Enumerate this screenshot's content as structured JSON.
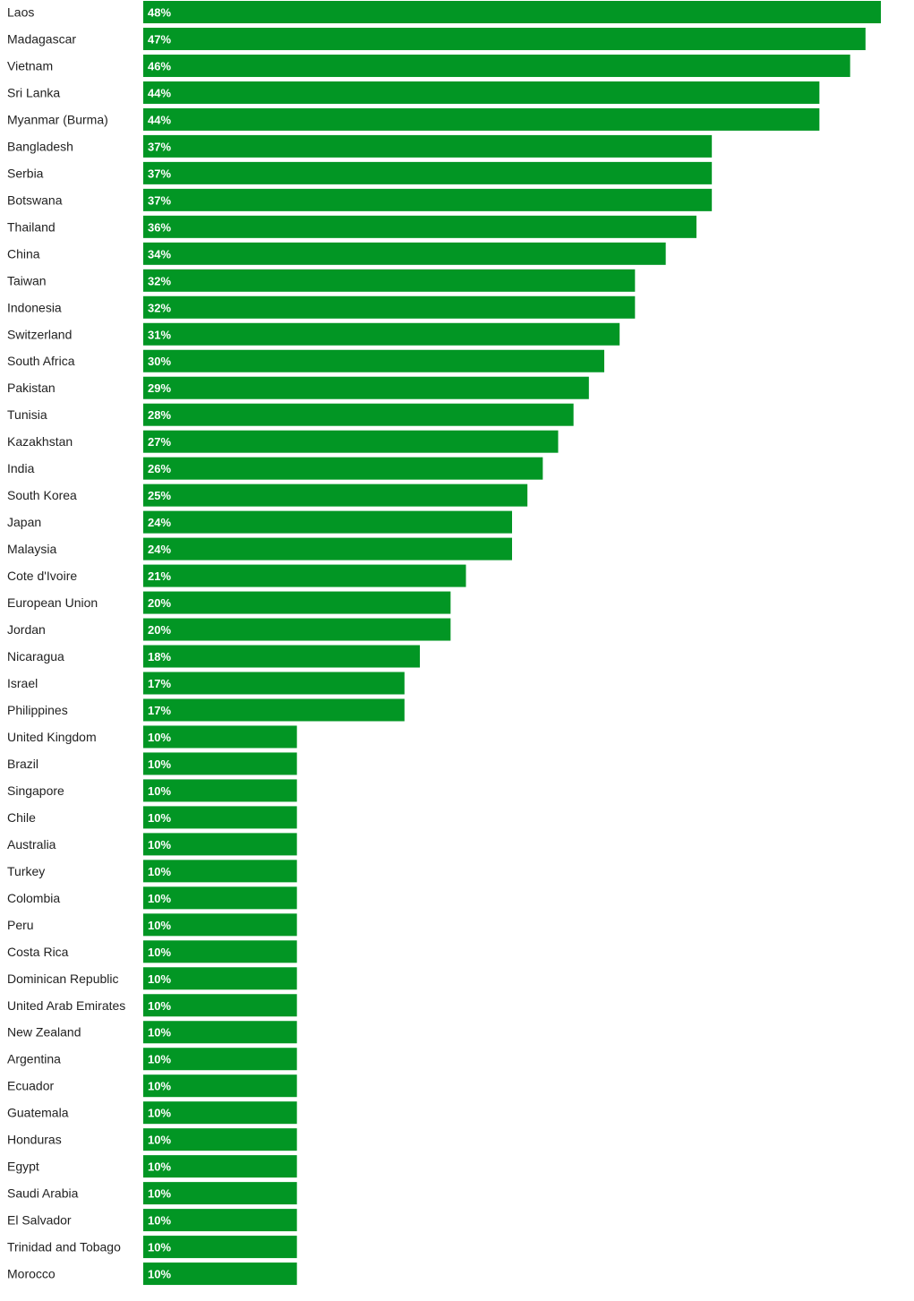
{
  "chart_data": {
    "type": "bar",
    "orientation": "horizontal",
    "title": "",
    "xlabel": "",
    "ylabel": "",
    "xlim": [
      0,
      48
    ],
    "value_suffix": "%",
    "bar_color": "#029624",
    "label_color": "#ffffff",
    "categories": [
      "Laos",
      "Madagascar",
      "Vietnam",
      "Sri Lanka",
      "Myanmar (Burma)",
      "Bangladesh",
      "Serbia",
      "Botswana",
      "Thailand",
      "China",
      "Taiwan",
      "Indonesia",
      "Switzerland",
      "South Africa",
      "Pakistan",
      "Tunisia",
      "Kazakhstan",
      "India",
      "South Korea",
      "Japan",
      "Malaysia",
      "Cote d'Ivoire",
      "European Union",
      "Jordan",
      "Nicaragua",
      "Israel",
      "Philippines",
      "United Kingdom",
      "Brazil",
      "Singapore",
      "Chile",
      "Australia",
      "Turkey",
      "Colombia",
      "Peru",
      "Costa Rica",
      "Dominican Republic",
      "United Arab Emirates",
      "New Zealand",
      "Argentina",
      "Ecuador",
      "Guatemala",
      "Honduras",
      "Egypt",
      "Saudi Arabia",
      "El Salvador",
      "Trinidad and Tobago",
      "Morocco"
    ],
    "values": [
      48,
      47,
      46,
      44,
      44,
      37,
      37,
      37,
      36,
      34,
      32,
      32,
      31,
      30,
      29,
      28,
      27,
      26,
      25,
      24,
      24,
      21,
      20,
      20,
      18,
      17,
      17,
      10,
      10,
      10,
      10,
      10,
      10,
      10,
      10,
      10,
      10,
      10,
      10,
      10,
      10,
      10,
      10,
      10,
      10,
      10,
      10,
      10
    ],
    "value_labels": [
      "48%",
      "47%",
      "46%",
      "44%",
      "44%",
      "37%",
      "37%",
      "37%",
      "36%",
      "34%",
      "32%",
      "32%",
      "31%",
      "30%",
      "29%",
      "28%",
      "27%",
      "26%",
      "25%",
      "24%",
      "24%",
      "21%",
      "20%",
      "20%",
      "18%",
      "17%",
      "17%",
      "10%",
      "10%",
      "10%",
      "10%",
      "10%",
      "10%",
      "10%",
      "10%",
      "10%",
      "10%",
      "10%",
      "10%",
      "10%",
      "10%",
      "10%",
      "10%",
      "10%",
      "10%",
      "10%",
      "10%",
      "10%"
    ]
  }
}
